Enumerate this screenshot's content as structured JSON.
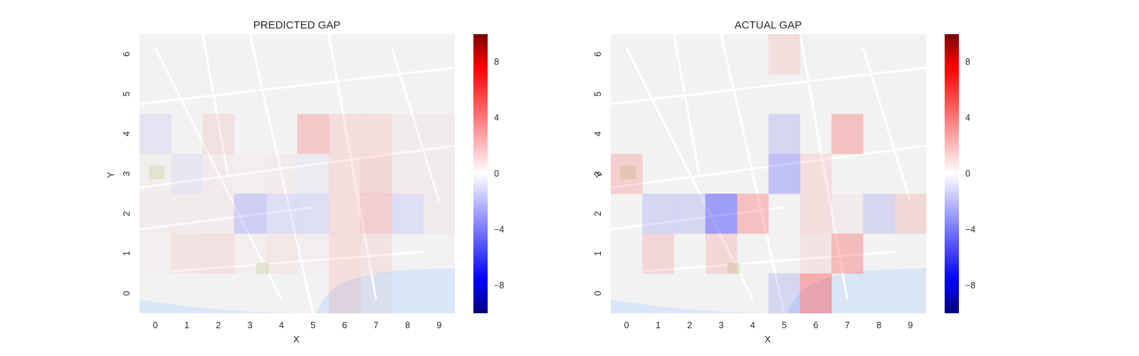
{
  "chart_data": [
    {
      "type": "heatmap",
      "title": "PREDICTED GAP",
      "xlabel": "X",
      "ylabel": "Y",
      "x_ticks": [
        "0",
        "1",
        "2",
        "3",
        "4",
        "5",
        "6",
        "7",
        "8",
        "9"
      ],
      "y_ticks": [
        "0",
        "1",
        "2",
        "3",
        "4",
        "5",
        "6"
      ],
      "colorbar": {
        "range": [
          -10,
          10
        ],
        "ticks": [
          8,
          4,
          0,
          -4,
          -8
        ],
        "tick_labels": [
          "8",
          "4",
          "0",
          "−4",
          "−8"
        ]
      },
      "rows_top_to_bottom": [
        [
          0,
          0,
          0,
          0,
          0,
          0,
          0,
          0,
          0,
          0
        ],
        [
          0,
          0,
          0,
          0,
          0,
          0,
          0,
          0,
          0,
          0
        ],
        [
          -1,
          0,
          1.2,
          0,
          0,
          3,
          1.5,
          1.5,
          0.5,
          0.5
        ],
        [
          0.3,
          -0.8,
          0.5,
          0.3,
          0.5,
          -0.5,
          1.5,
          2,
          0.5,
          0.5
        ],
        [
          0.5,
          0.5,
          0.5,
          -2.5,
          -1.5,
          -1.5,
          1.5,
          2.5,
          -1.5,
          0.5
        ],
        [
          0.3,
          1,
          1.2,
          0.3,
          0.8,
          0.3,
          1.5,
          1,
          0,
          0
        ],
        [
          0,
          0,
          0,
          0,
          0,
          0,
          1.5,
          0.5,
          0,
          0
        ]
      ]
    },
    {
      "type": "heatmap",
      "title": "ACTUAL GAP",
      "xlabel": "X",
      "ylabel": "Y",
      "x_ticks": [
        "0",
        "1",
        "2",
        "3",
        "4",
        "5",
        "6",
        "7",
        "8",
        "9"
      ],
      "y_ticks": [
        "0",
        "1",
        "2",
        "3",
        "4",
        "5",
        "6"
      ],
      "colorbar": {
        "range": [
          -10,
          10
        ],
        "ticks": [
          8,
          4,
          0,
          -4,
          -8
        ],
        "tick_labels": [
          "8",
          "4",
          "0",
          "−4",
          "−8"
        ]
      },
      "rows_top_to_bottom": [
        [
          0,
          0,
          0,
          0,
          0,
          1.5,
          0,
          0,
          0,
          0
        ],
        [
          0,
          0,
          0,
          0,
          0,
          0,
          0,
          0,
          0,
          0
        ],
        [
          0,
          0,
          0,
          0,
          0,
          -2,
          0,
          3.5,
          0,
          0
        ],
        [
          2.5,
          0,
          0,
          0,
          0,
          -3.5,
          1.5,
          0,
          0,
          0
        ],
        [
          0,
          -2,
          -2,
          -6,
          3.5,
          0,
          1.5,
          0.5,
          -2,
          2
        ],
        [
          0,
          2,
          0,
          2,
          0,
          0,
          1,
          4,
          0,
          0
        ],
        [
          0,
          0,
          0,
          0,
          0,
          -2,
          5,
          0,
          0,
          0
        ]
      ]
    }
  ],
  "style": {
    "positive_color": "#ff0000",
    "negative_color": "#0000ff",
    "water_color": "#d9e6f7",
    "map_bg": "#f2f2f2"
  }
}
